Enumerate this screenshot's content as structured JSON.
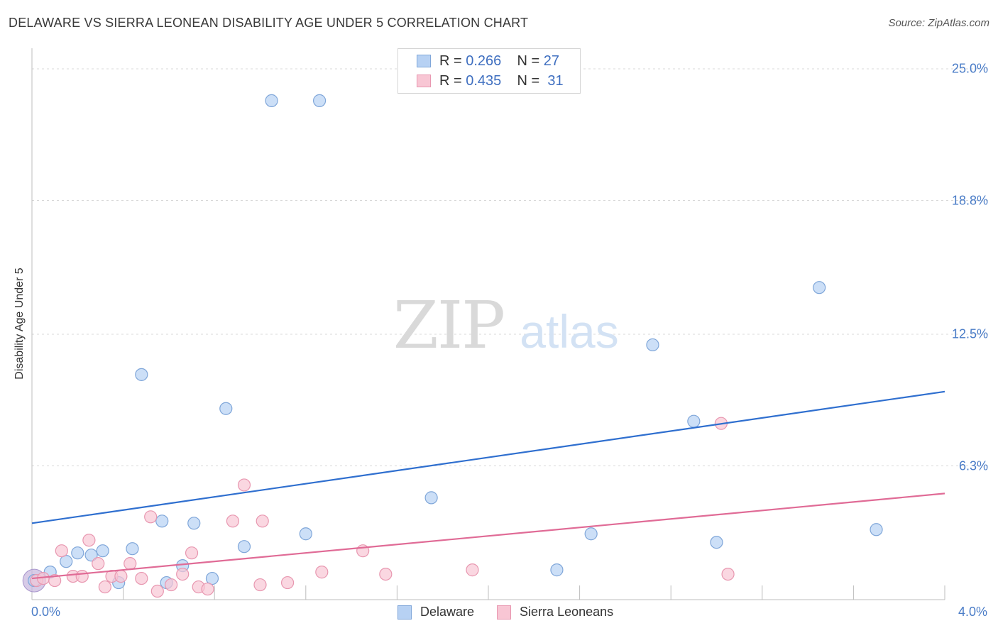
{
  "title": "DELAWARE VS SIERRA LEONEAN DISABILITY AGE UNDER 5 CORRELATION CHART",
  "source": "Source: ZipAtlas.com",
  "watermark": {
    "zip": "ZIP",
    "atlas": "atlas"
  },
  "legend_top": [
    {
      "r_label": "R =",
      "r_value": "0.266",
      "n_label": "N =",
      "n_value": "27"
    },
    {
      "r_label": "R =",
      "r_value": "0.435",
      "n_label": "N =",
      "n_value": "31"
    }
  ],
  "legend_bottom": [
    "Delaware",
    "Sierra Leoneans"
  ],
  "colors": {
    "delaware_fill": "#b7d1f3",
    "delaware_stroke": "#7fa6d9",
    "delaware_line": "#2f6fcf",
    "sierra_fill": "#f8c6d4",
    "sierra_stroke": "#e897b0",
    "sierra_line": "#e06b96",
    "tick_text": "#4a7cc7",
    "grid": "#d8d8d8"
  },
  "chart_data": {
    "type": "scatter",
    "title": "DELAWARE VS SIERRA LEONEAN DISABILITY AGE UNDER 5 CORRELATION CHART",
    "xlabel": "",
    "ylabel": "Disability Age Under 5",
    "xlim": [
      0,
      4.0
    ],
    "ylim": [
      0,
      25.0
    ],
    "x_tick_labels": [
      "0.0%",
      "4.0%"
    ],
    "y_ticks": [
      6.3,
      12.5,
      18.8,
      25.0
    ],
    "y_tick_labels": [
      "6.3%",
      "12.5%",
      "18.8%",
      "25.0%"
    ],
    "grid": true,
    "series": [
      {
        "name": "Delaware",
        "R": 0.266,
        "N": 27,
        "points": [
          [
            0.01,
            0.9
          ],
          [
            0.08,
            1.3
          ],
          [
            0.15,
            1.8
          ],
          [
            0.2,
            2.2
          ],
          [
            0.26,
            2.1
          ],
          [
            0.31,
            2.3
          ],
          [
            0.38,
            0.8
          ],
          [
            0.44,
            2.4
          ],
          [
            0.48,
            10.6
          ],
          [
            0.57,
            3.7
          ],
          [
            0.59,
            0.8
          ],
          [
            0.66,
            1.6
          ],
          [
            0.71,
            3.6
          ],
          [
            0.79,
            1.0
          ],
          [
            0.85,
            9.0
          ],
          [
            0.93,
            2.5
          ],
          [
            1.05,
            23.5
          ],
          [
            1.2,
            3.1
          ],
          [
            1.26,
            23.5
          ],
          [
            1.75,
            4.8
          ],
          [
            2.3,
            1.4
          ],
          [
            2.45,
            3.1
          ],
          [
            2.72,
            12.0
          ],
          [
            2.9,
            8.4
          ],
          [
            3.0,
            2.7
          ],
          [
            3.45,
            14.7
          ],
          [
            3.7,
            3.3
          ]
        ],
        "trend": {
          "x": [
            0.0,
            4.0
          ],
          "y": [
            3.6,
            9.8
          ]
        }
      },
      {
        "name": "Sierra Leoneans",
        "R": 0.435,
        "N": 31,
        "points": [
          [
            0.02,
            0.9
          ],
          [
            0.05,
            1.0
          ],
          [
            0.1,
            0.9
          ],
          [
            0.13,
            2.3
          ],
          [
            0.18,
            1.1
          ],
          [
            0.22,
            1.1
          ],
          [
            0.25,
            2.8
          ],
          [
            0.29,
            1.7
          ],
          [
            0.32,
            0.6
          ],
          [
            0.35,
            1.1
          ],
          [
            0.39,
            1.1
          ],
          [
            0.43,
            1.7
          ],
          [
            0.48,
            1.0
          ],
          [
            0.52,
            3.9
          ],
          [
            0.55,
            0.4
          ],
          [
            0.61,
            0.7
          ],
          [
            0.66,
            1.2
          ],
          [
            0.7,
            2.2
          ],
          [
            0.73,
            0.6
          ],
          [
            0.77,
            0.5
          ],
          [
            0.88,
            3.7
          ],
          [
            0.93,
            5.4
          ],
          [
            1.0,
            0.7
          ],
          [
            1.01,
            3.7
          ],
          [
            1.12,
            0.8
          ],
          [
            1.27,
            1.3
          ],
          [
            1.45,
            2.3
          ],
          [
            1.55,
            1.2
          ],
          [
            1.93,
            1.4
          ],
          [
            3.02,
            8.3
          ],
          [
            3.05,
            1.2
          ]
        ],
        "trend": {
          "x": [
            0.0,
            4.0
          ],
          "y": [
            1.0,
            5.0
          ]
        }
      }
    ]
  }
}
